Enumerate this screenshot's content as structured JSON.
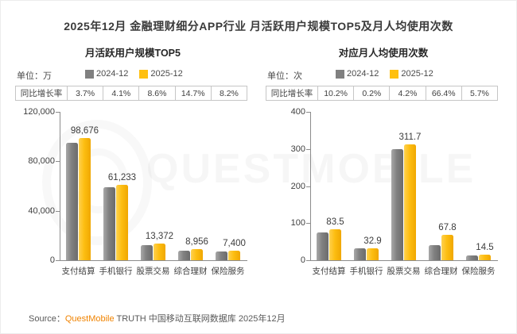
{
  "page": {
    "title": "2025年12月 金融理财细分APP行业 月活跃用户规模TOP5及月人均使用次数",
    "source_prefix": "Source：",
    "source_brand": "QuestMobile",
    "source_rest": " TRUTH 中国移动互联网数据库 2025年12月",
    "watermark": "QUESTMOBILE"
  },
  "colors": {
    "series_2024": "#808080",
    "series_2025": "#ffc010",
    "brand_orange": "#f08300",
    "axis": "#8c8c8c"
  },
  "legend": {
    "y2024": "2024-12",
    "y2025": "2025-12"
  },
  "labels": {
    "yoy": "同比增长率"
  },
  "chart_data": [
    {
      "type": "bar",
      "title": "月活跃用户规模TOP5",
      "unit_label": "单位：万",
      "categories": [
        "支付结算",
        "手机银行",
        "股票交易",
        "综合理财",
        "保险服务"
      ],
      "series": [
        {
          "name": "2024-12",
          "values": [
            95155,
            58821,
            12313,
            7808,
            6839
          ]
        },
        {
          "name": "2025-12",
          "values": [
            98676,
            61233,
            13372,
            8956,
            7400
          ]
        }
      ],
      "data_labels": [
        "98,676",
        "61,233",
        "13,372",
        "8,956",
        "7,400"
      ],
      "yoy_growth": [
        "3.7%",
        "4.1%",
        "8.6%",
        "14.7%",
        "8.2%"
      ],
      "ylim": [
        0,
        120000
      ],
      "yticks": [
        "120,000",
        "80,000",
        "40,000",
        "0"
      ],
      "legend_position": "top",
      "grid": false
    },
    {
      "type": "bar",
      "title": "对应月人均使用次数",
      "unit_label": "单位：次",
      "categories": [
        "支付结算",
        "手机银行",
        "股票交易",
        "综合理财",
        "保险服务"
      ],
      "series": [
        {
          "name": "2024-12",
          "values": [
            75.8,
            32.8,
            299.1,
            40.7,
            13.7
          ]
        },
        {
          "name": "2025-12",
          "values": [
            83.5,
            32.9,
            311.7,
            67.8,
            14.5
          ]
        }
      ],
      "data_labels": [
        "83.5",
        "32.9",
        "311.7",
        "67.8",
        "14.5"
      ],
      "yoy_growth": [
        "10.2%",
        "0.2%",
        "4.2%",
        "66.4%",
        "5.7%"
      ],
      "ylim": [
        0,
        400
      ],
      "yticks": [
        "400",
        "300",
        "200",
        "100",
        "0"
      ],
      "legend_position": "top",
      "grid": false
    }
  ]
}
